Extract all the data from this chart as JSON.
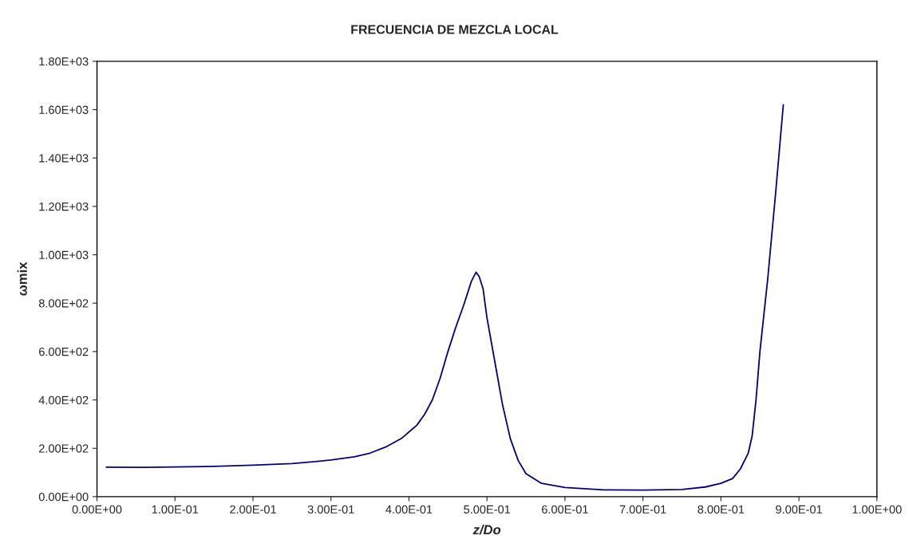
{
  "chart_data": {
    "type": "line",
    "title": "FRECUENCIA DE MEZCLA LOCAL",
    "xlabel": "z/Do",
    "ylabel": "ωmix",
    "x": [
      0.012,
      0.06,
      0.1,
      0.15,
      0.2,
      0.25,
      0.28,
      0.3,
      0.33,
      0.35,
      0.37,
      0.39,
      0.41,
      0.42,
      0.43,
      0.44,
      0.45,
      0.46,
      0.47,
      0.48,
      0.486,
      0.49,
      0.495,
      0.5,
      0.51,
      0.52,
      0.53,
      0.54,
      0.55,
      0.57,
      0.6,
      0.65,
      0.7,
      0.75,
      0.78,
      0.8,
      0.815,
      0.825,
      0.835,
      0.84,
      0.845,
      0.85,
      0.86,
      0.87,
      0.88
    ],
    "series": [
      {
        "color": "#000080",
        "values": [
          122,
          121,
          123,
          125,
          130,
          137,
          145,
          152,
          165,
          180,
          205,
          240,
          295,
          340,
          400,
          490,
          600,
          700,
          790,
          890,
          928,
          910,
          860,
          740,
          560,
          380,
          240,
          150,
          95,
          55,
          38,
          28,
          27,
          30,
          40,
          55,
          75,
          115,
          180,
          250,
          400,
          600,
          900,
          1250,
          1620
        ]
      }
    ],
    "xlim": [
      0,
      1
    ],
    "ylim": [
      0,
      1800
    ],
    "xticks": [
      {
        "value": 0,
        "label": "0.00E+00"
      },
      {
        "value": 0.1,
        "label": "1.00E-01"
      },
      {
        "value": 0.2,
        "label": "2.00E-01"
      },
      {
        "value": 0.3,
        "label": "3.00E-01"
      },
      {
        "value": 0.4,
        "label": "4.00E-01"
      },
      {
        "value": 0.5,
        "label": "5.00E-01"
      },
      {
        "value": 0.6,
        "label": "6.00E-01"
      },
      {
        "value": 0.7,
        "label": "7.00E-01"
      },
      {
        "value": 0.8,
        "label": "8.00E-01"
      },
      {
        "value": 0.9,
        "label": "9.00E-01"
      },
      {
        "value": 1,
        "label": "1.00E+00"
      }
    ],
    "yticks": [
      {
        "value": 0,
        "label": "0.00E+00"
      },
      {
        "value": 200,
        "label": "2.00E+02"
      },
      {
        "value": 400,
        "label": "4.00E+02"
      },
      {
        "value": 600,
        "label": "6.00E+02"
      },
      {
        "value": 800,
        "label": "8.00E+02"
      },
      {
        "value": 1000,
        "label": "1.00E+03"
      },
      {
        "value": 1200,
        "label": "1.20E+03"
      },
      {
        "value": 1400,
        "label": "1.40E+03"
      },
      {
        "value": 1600,
        "label": "1.60E+03"
      },
      {
        "value": 1800,
        "label": "1.80E+03"
      }
    ],
    "grid": false
  }
}
